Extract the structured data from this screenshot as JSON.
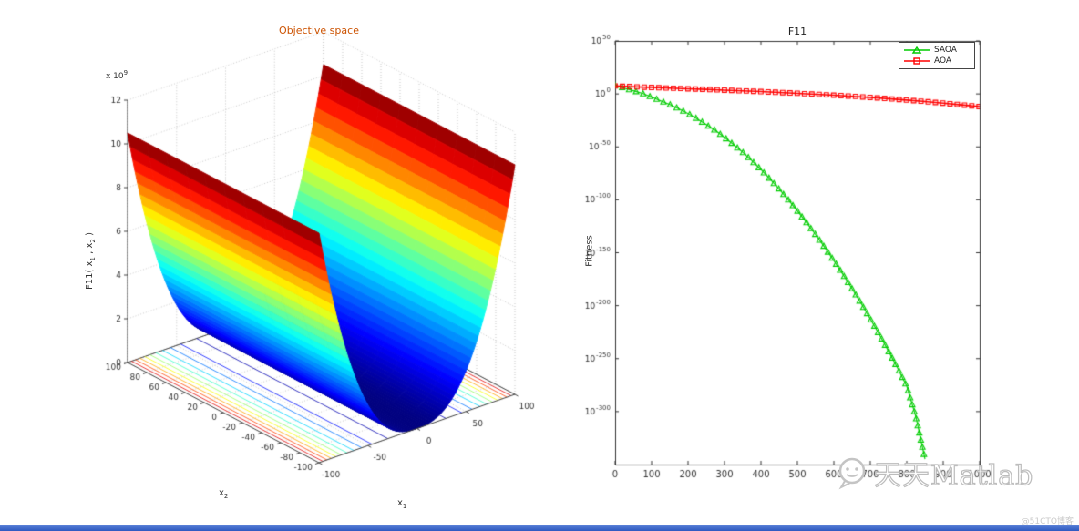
{
  "colors": {
    "left_title": "#cc5200",
    "axis": "#444444",
    "grid_dotted": "#b0b0b0",
    "saoa_green": "#00cc00",
    "aoa_red": "#ff0000",
    "watermark_outline": "#bdbdbd",
    "bottom_bar": "#2d59c0",
    "bottom_bar_light": "#5b82d8"
  },
  "left_plot": {
    "title": "Objective space",
    "xlabel_base": "x",
    "xlabel_sub": "1",
    "ylabel_base": "x",
    "ylabel_sub": "2",
    "zlabel_parts": [
      "F11( x",
      "1",
      " , x",
      "2",
      " )"
    ],
    "z_exponent_prefix": "x 10",
    "z_exponent": "9",
    "x_ticks": [
      -100,
      -50,
      0,
      50,
      100
    ],
    "y_ticks": [
      100,
      80,
      60,
      40,
      20,
      0,
      -20,
      -40,
      -60,
      -80,
      -100
    ],
    "z_ticks": [
      0,
      2,
      4,
      6,
      8,
      10,
      12
    ],
    "view": {
      "azimuth": -37.5,
      "elevation": 30
    }
  },
  "right_plot": {
    "title": "F11",
    "ylabel": "Fitness",
    "x_ticks": [
      0,
      100,
      200,
      300,
      400,
      500,
      600,
      700,
      800,
      900,
      1000
    ],
    "y_tick_exponents": [
      50,
      0,
      -50,
      -100,
      -150,
      -200,
      -250,
      -300
    ],
    "legend": [
      {
        "label": "SAOA",
        "color": "#00cc00",
        "marker": "triangle"
      },
      {
        "label": "AOA",
        "color": "#ff0000",
        "marker": "square"
      }
    ]
  },
  "chart_data": [
    {
      "type": "surface",
      "title": "Objective space",
      "xlabel": "x_1",
      "ylabel": "x_2",
      "zlabel": "F11( x_1 , x_2 )",
      "x_range": [
        -100,
        100
      ],
      "y_range": [
        -100,
        100
      ],
      "z_axis_max": 12000000000.0,
      "z_tick_unit": 1000000000.0,
      "z_peak": 10500000000.0,
      "profile_power": 2.5,
      "profile_x1": [
        -100,
        -80,
        -60,
        -40,
        -20,
        0,
        20,
        40,
        60,
        80,
        100
      ],
      "profile_z": [
        10500000000.0,
        6010000000.0,
        2930000000.0,
        1060000000.0,
        188000000.0,
        0,
        188000000.0,
        1060000000.0,
        2930000000.0,
        6010000000.0,
        10500000000.0
      ],
      "contour_levels": [
        500000000.0,
        1500000000.0,
        2500000000.0,
        3500000000.0,
        4500000000.0,
        5500000000.0,
        6500000000.0,
        7500000000.0,
        8500000000.0,
        9500000000.0
      ],
      "colormap": "jet",
      "description": "Valley-shaped benchmark surface, z depends on |x1| only, constant along x2"
    },
    {
      "type": "line",
      "title": "F11",
      "xlabel": "",
      "ylabel": "Fitness",
      "x_range": [
        0,
        1000
      ],
      "y_scale": "log10",
      "y_log_range": [
        -350,
        50
      ],
      "legend_position": "top-right",
      "grid": false,
      "series": [
        {
          "name": "SAOA",
          "color": "#00cc00",
          "marker": "triangle",
          "x": [
            0,
            25,
            50,
            75,
            100,
            125,
            150,
            175,
            200,
            225,
            250,
            275,
            300,
            325,
            350,
            375,
            400,
            425,
            450,
            475,
            500,
            525,
            550,
            575,
            600,
            625,
            650,
            675,
            700,
            725,
            750,
            775,
            800,
            825,
            850
          ],
          "log10_y": [
            8,
            5.5,
            3,
            0.5,
            -3,
            -6.5,
            -10,
            -14,
            -18.5,
            -23.5,
            -29,
            -34.5,
            -41,
            -48,
            -55,
            -63,
            -71.5,
            -80.5,
            -90,
            -100,
            -110.5,
            -121.5,
            -133,
            -145,
            -157.5,
            -170.5,
            -184,
            -198,
            -212.5,
            -227.5,
            -243,
            -259,
            -276,
            -305,
            -345
          ]
        },
        {
          "name": "AOA",
          "color": "#ff0000",
          "marker": "square",
          "x": [
            0,
            50,
            100,
            150,
            200,
            250,
            300,
            350,
            400,
            450,
            500,
            550,
            600,
            650,
            700,
            750,
            800,
            850,
            900,
            950,
            1000
          ],
          "log10_y": [
            7.5,
            6.8,
            6.1,
            5.5,
            4.9,
            4.3,
            3.6,
            2.9,
            2.2,
            1.4,
            0.6,
            -0.3,
            -1.2,
            -2.2,
            -3.3,
            -4.5,
            -5.8,
            -7.2,
            -8.7,
            -10.3,
            -12
          ]
        }
      ]
    }
  ],
  "watermark": {
    "text": "天天Matlab",
    "credit": "@51CTO博客"
  }
}
